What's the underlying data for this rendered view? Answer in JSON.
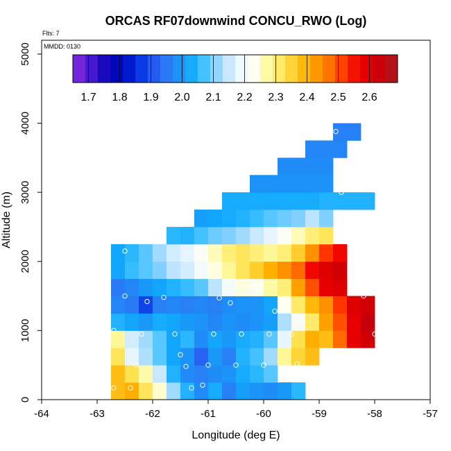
{
  "chart_data": {
    "type": "heatmap",
    "title": "ORCAS RF07downwind CONCU_RWO (Log)",
    "flts_label": "Flts: 7",
    "date_label": "MMDD: 0130",
    "xlabel": "Longitude (deg E)",
    "ylabel": "Altitude (m)",
    "xlim": [
      -64,
      -57
    ],
    "ylim": [
      0,
      5200
    ],
    "xticks": [
      "-64",
      "-63",
      "-62",
      "-61",
      "-60",
      "-59",
      "-58",
      "-57"
    ],
    "yticks": [
      "0",
      "1000",
      "2000",
      "3000",
      "4000",
      "5000"
    ],
    "xtick_values": [
      -64,
      -63,
      -62,
      -61,
      -60,
      -59,
      -58,
      -57
    ],
    "ytick_values": [
      0,
      1000,
      2000,
      3000,
      4000,
      5000
    ],
    "colorbar": {
      "min": 1.65,
      "max": 2.69,
      "colors": [
        "#8a2be2",
        "#5a1fd6",
        "#2a0fc8",
        "#0000b4",
        "#0010c8",
        "#0030e0",
        "#1e55ee",
        "#2e74f4",
        "#1e8ef8",
        "#10a8fc",
        "#3cc0ff",
        "#90d4ff",
        "#c8e8ff",
        "#f0faff",
        "#fffff0",
        "#fffaa0",
        "#ffe860",
        "#ffd030",
        "#ffb000",
        "#ff9000",
        "#ff6800",
        "#ff3000",
        "#f00000",
        "#d80000",
        "#c00010",
        "#a82020"
      ],
      "ticks": [
        "1.7",
        "1.8",
        "1.9",
        "2.0",
        "2.1",
        "2.2",
        "2.3",
        "2.4",
        "2.5",
        "2.6"
      ],
      "tick_values": [
        1.7,
        1.8,
        1.9,
        2.0,
        2.1,
        2.2,
        2.3,
        2.4,
        2.5,
        2.6
      ]
    },
    "cell_size": {
      "dlon": 0.25,
      "dalt": 250
    },
    "cells": [
      {
        "lon": -62.75,
        "alt": 0,
        "values": [
          2.38,
          2.4,
          2.32,
          2.25,
          2.12,
          2.04,
          1.98,
          2.03,
          1.96,
          2.01,
          1.99,
          1.98,
          2.0,
          2.05
        ]
      },
      {
        "lon": -62.75,
        "alt": 250,
        "values": [
          2.38,
          2.33,
          2.27,
          2.15,
          2.04,
          1.98,
          1.96,
          1.98,
          1.99,
          2.03,
          2.05,
          2.08
        ]
      },
      {
        "lon": -62.75,
        "alt": 500,
        "values": [
          2.32,
          2.18,
          2.13,
          2.08,
          2.02,
          1.99,
          1.92,
          2.0,
          1.96,
          2.04,
          2.07,
          2.12,
          2.28,
          2.35,
          2.38
        ]
      },
      {
        "lon": -62.75,
        "alt": 750,
        "values": [
          2.28,
          2.16,
          2.12,
          2.08,
          2.02,
          2.05,
          1.98,
          2.02,
          2.0,
          2.03,
          2.04,
          2.08,
          2.18,
          2.33,
          2.4,
          2.38,
          2.48,
          2.58,
          2.62
        ]
      },
      {
        "lon": -62.75,
        "alt": 1000,
        "values": [
          2.04,
          2.02,
          2.0,
          2.03,
          2.02,
          2.0,
          1.99,
          1.97,
          1.99,
          1.98,
          1.99,
          2.01,
          2.13,
          2.21,
          2.31,
          2.42,
          2.5,
          2.58,
          2.64
        ]
      },
      {
        "lon": -62.75,
        "alt": 1250,
        "values": [
          1.97,
          1.95,
          1.88,
          1.96,
          1.97,
          1.96,
          1.97,
          1.96,
          1.98,
          1.99,
          1.99,
          2.02,
          2.23,
          2.31,
          2.39,
          2.44,
          2.52,
          2.6,
          2.62
        ]
      },
      {
        "lon": -62.75,
        "alt": 1500,
        "values": [
          1.95,
          1.97,
          2.0,
          2.02,
          2.04,
          2.06,
          2.08,
          2.14,
          2.2,
          2.24,
          2.23,
          2.27,
          2.3,
          2.42,
          2.5,
          2.58,
          2.6
        ]
      },
      {
        "lon": -62.75,
        "alt": 1750,
        "values": [
          2.02,
          2.06,
          2.08,
          2.1,
          2.14,
          2.16,
          2.2,
          2.24,
          2.28,
          2.32,
          2.36,
          2.4,
          2.44,
          2.48,
          2.56,
          2.6,
          2.62
        ]
      },
      {
        "lon": -62.75,
        "alt": 2000,
        "values": [
          2.02,
          2.05,
          2.08,
          2.12,
          2.16,
          2.18,
          2.22,
          2.26,
          2.3,
          2.32,
          2.3,
          2.28,
          2.3,
          2.36,
          2.44,
          2.52,
          2.56
        ]
      },
      {
        "lon": -61.75,
        "alt": 2250,
        "values": [
          2.05,
          2.04,
          2.07,
          2.09,
          2.1,
          2.12,
          2.15,
          2.18,
          2.22,
          2.26,
          2.3,
          2.32
        ]
      },
      {
        "lon": -61.25,
        "alt": 2500,
        "values": [
          2.01,
          2.02,
          2.03,
          2.04,
          2.06,
          2.08,
          2.09,
          2.1,
          2.14,
          2.1
        ]
      },
      {
        "lon": -60.75,
        "alt": 2750,
        "values": [
          2.03,
          2.03,
          2.03,
          2.03,
          2.03,
          2.03,
          2.03,
          2.04,
          2.04,
          2.04,
          2.04
        ]
      },
      {
        "lon": -60.25,
        "alt": 3000,
        "values": [
          1.99,
          1.99,
          1.99,
          1.99,
          1.99,
          1.99
        ]
      },
      {
        "lon": -59.75,
        "alt": 3250,
        "values": [
          1.98,
          1.98,
          1.98,
          1.98
        ]
      },
      {
        "lon": -59.25,
        "alt": 3500,
        "values": [
          1.97,
          1.97,
          1.97
        ]
      },
      {
        "lon": -58.75,
        "alt": 3750,
        "values": [
          1.96,
          1.96
        ]
      }
    ],
    "flight_points": [
      [
        -62.5,
        2150
      ],
      [
        -62.5,
        1500
      ],
      [
        -62.1,
        1420
      ],
      [
        -61.8,
        1480
      ],
      [
        -60.8,
        1470
      ],
      [
        -60.6,
        1400
      ],
      [
        -59.8,
        1280
      ],
      [
        -62.7,
        1000
      ],
      [
        -62.2,
        950
      ],
      [
        -61.6,
        950
      ],
      [
        -60.9,
        950
      ],
      [
        -60.4,
        950
      ],
      [
        -59.9,
        950
      ],
      [
        -59.5,
        950
      ],
      [
        -58.0,
        950
      ],
      [
        -62.8,
        750
      ],
      [
        -61.5,
        650
      ],
      [
        -62.8,
        500
      ],
      [
        -62.3,
        500
      ],
      [
        -61.4,
        480
      ],
      [
        -61.0,
        500
      ],
      [
        -60.5,
        500
      ],
      [
        -60.0,
        500
      ],
      [
        -59.4,
        520
      ],
      [
        -59.2,
        320
      ],
      [
        -62.7,
        170
      ],
      [
        -62.4,
        170
      ],
      [
        -61.3,
        170
      ],
      [
        -61.1,
        210
      ],
      [
        -59.2,
        170
      ],
      [
        -58.3,
        2200
      ],
      [
        -58.2,
        1850
      ],
      [
        -58.2,
        1500
      ],
      [
        -58.6,
        3000
      ],
      [
        -58.7,
        3880
      ]
    ]
  }
}
